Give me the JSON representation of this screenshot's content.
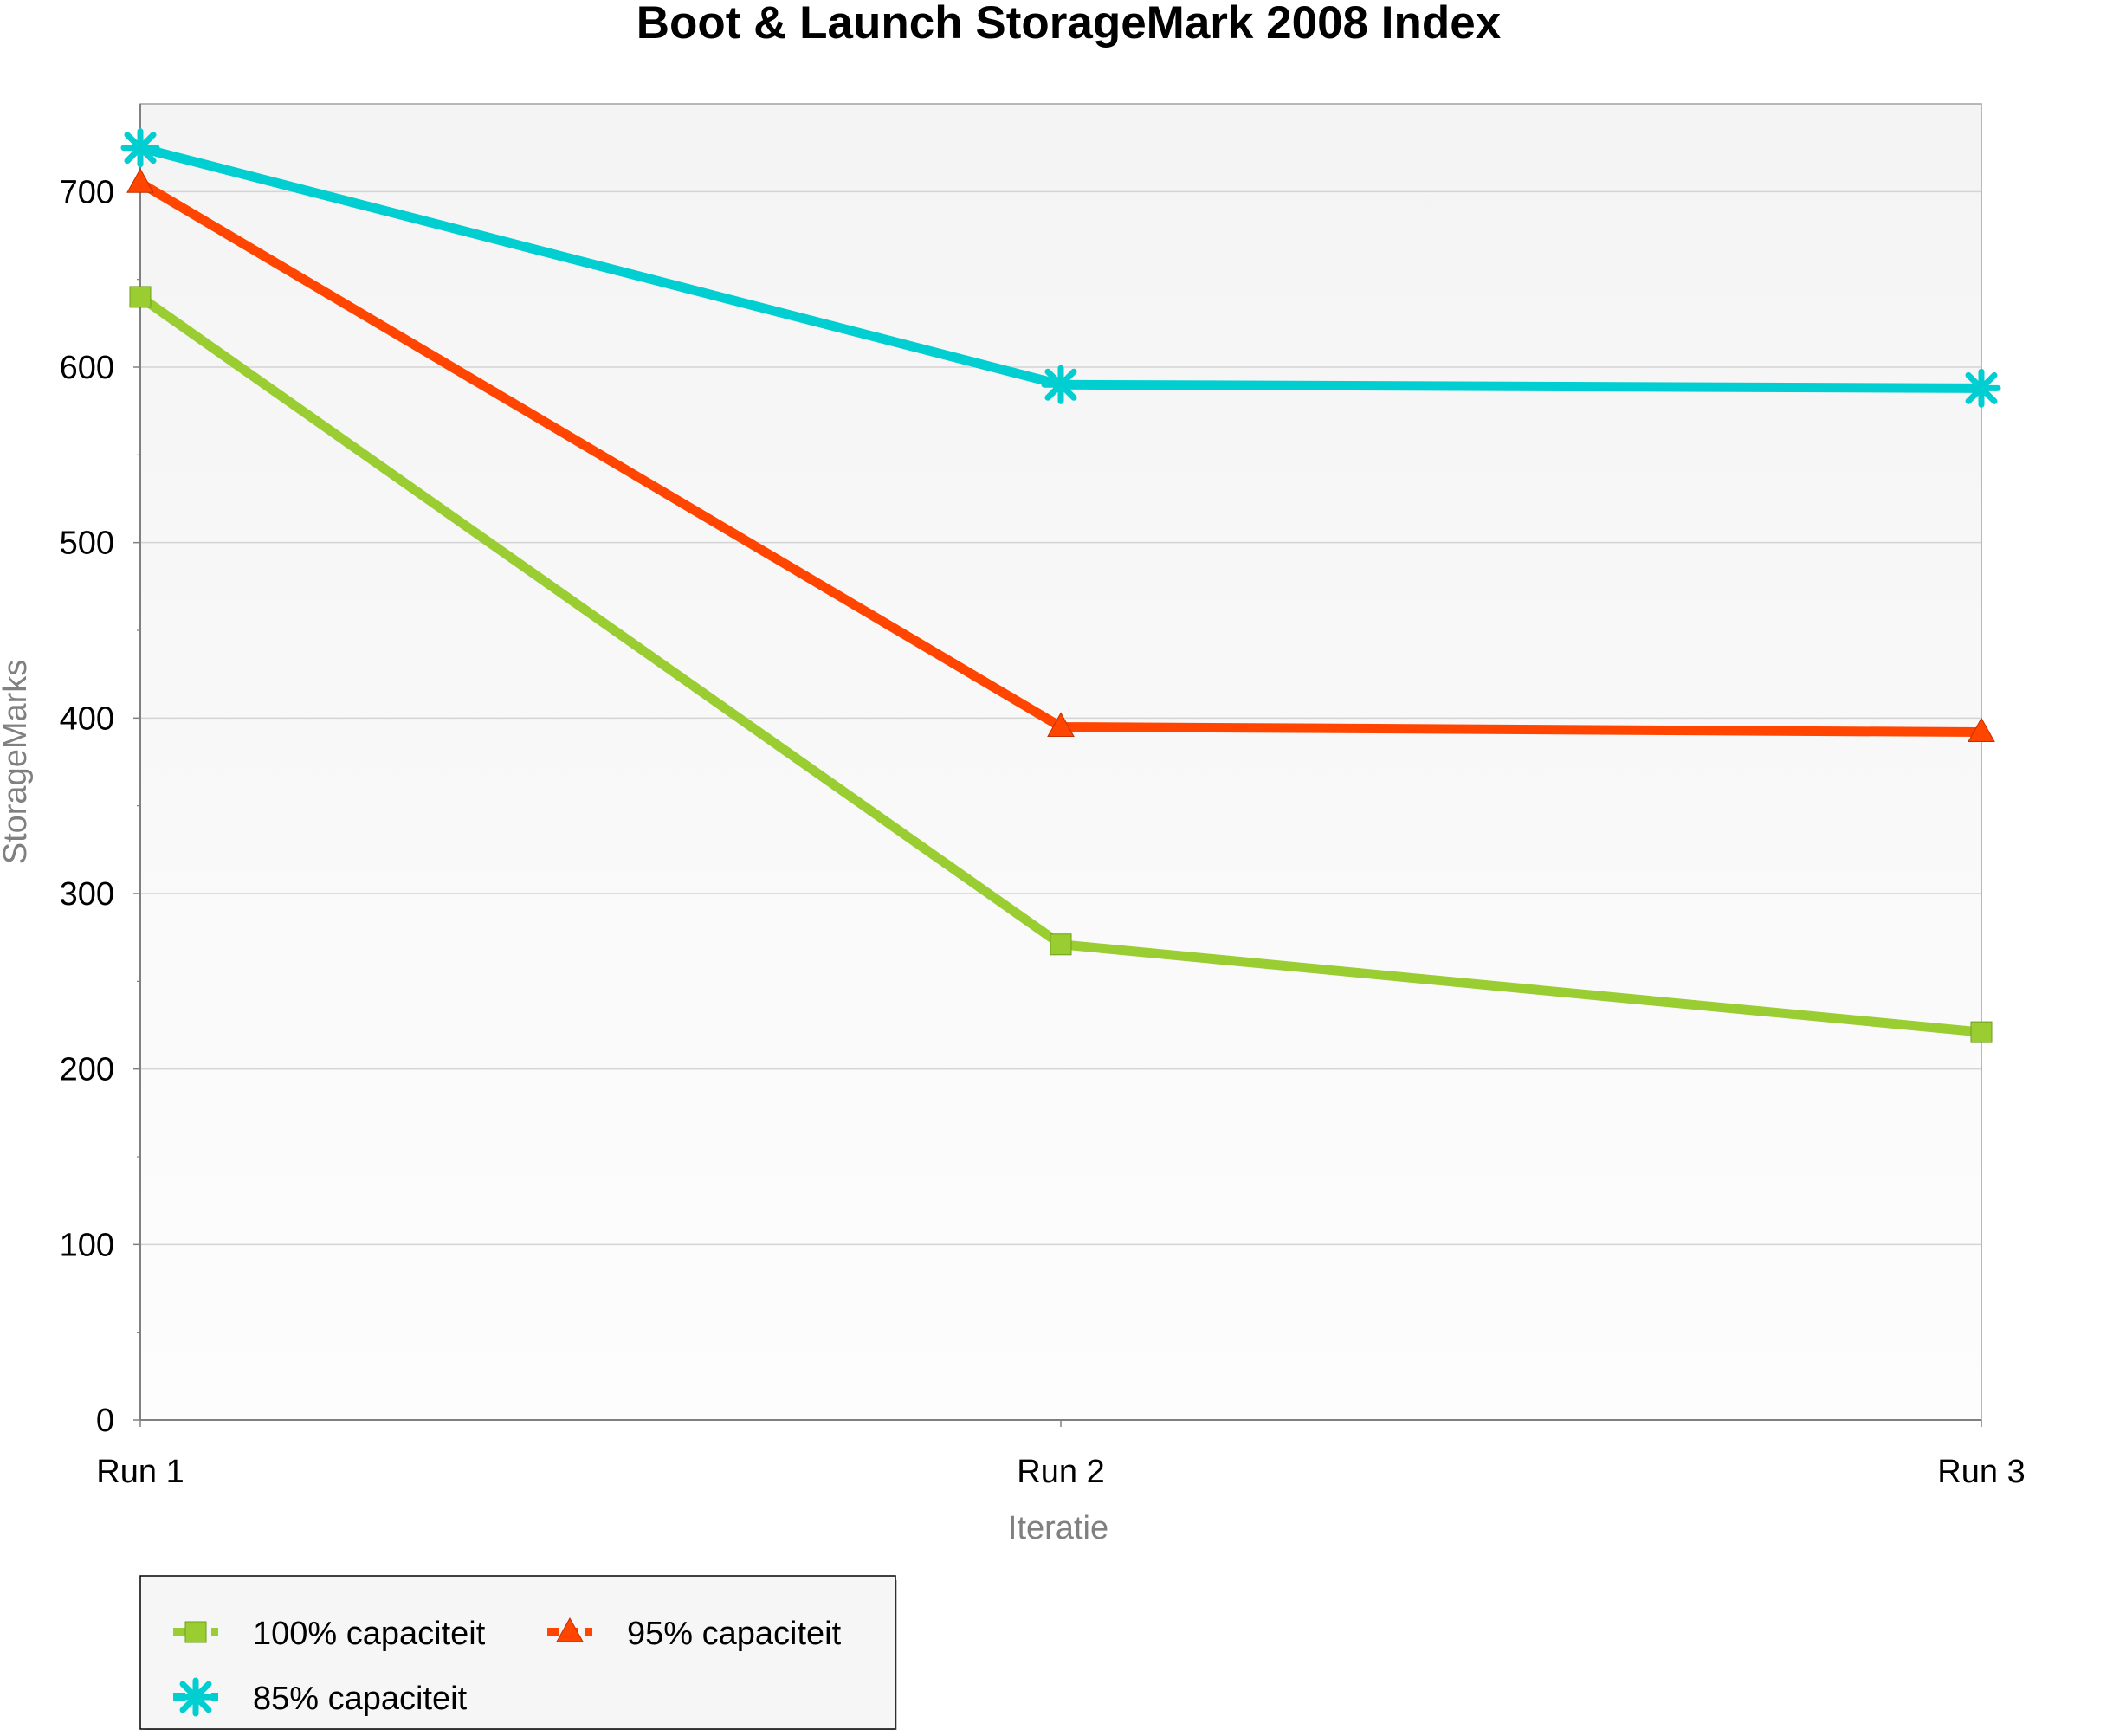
{
  "chart_data": {
    "type": "line",
    "title": "Boot & Launch StorageMark 2008 Index",
    "xlabel": "Iteratie",
    "ylabel": "StorageMarks",
    "categories": [
      "Run 1",
      "Run 2",
      "Run 3"
    ],
    "y_ticks": [
      "0",
      "100",
      "200",
      "300",
      "400",
      "500",
      "600",
      "700"
    ],
    "ylim": [
      0,
      750
    ],
    "grid": true,
    "legend_position": "bottom-left",
    "series": [
      {
        "name": "100% capaciteit",
        "values": [
          640,
          271,
          221
        ],
        "color": "#9acd32",
        "marker": "square"
      },
      {
        "name": "95% capaciteit",
        "values": [
          705,
          395,
          392
        ],
        "color": "#ff4500",
        "marker": "triangle"
      },
      {
        "name": "85% capaciteit",
        "values": [
          725,
          590,
          588
        ],
        "color": "#00ced1",
        "marker": "star"
      }
    ]
  }
}
